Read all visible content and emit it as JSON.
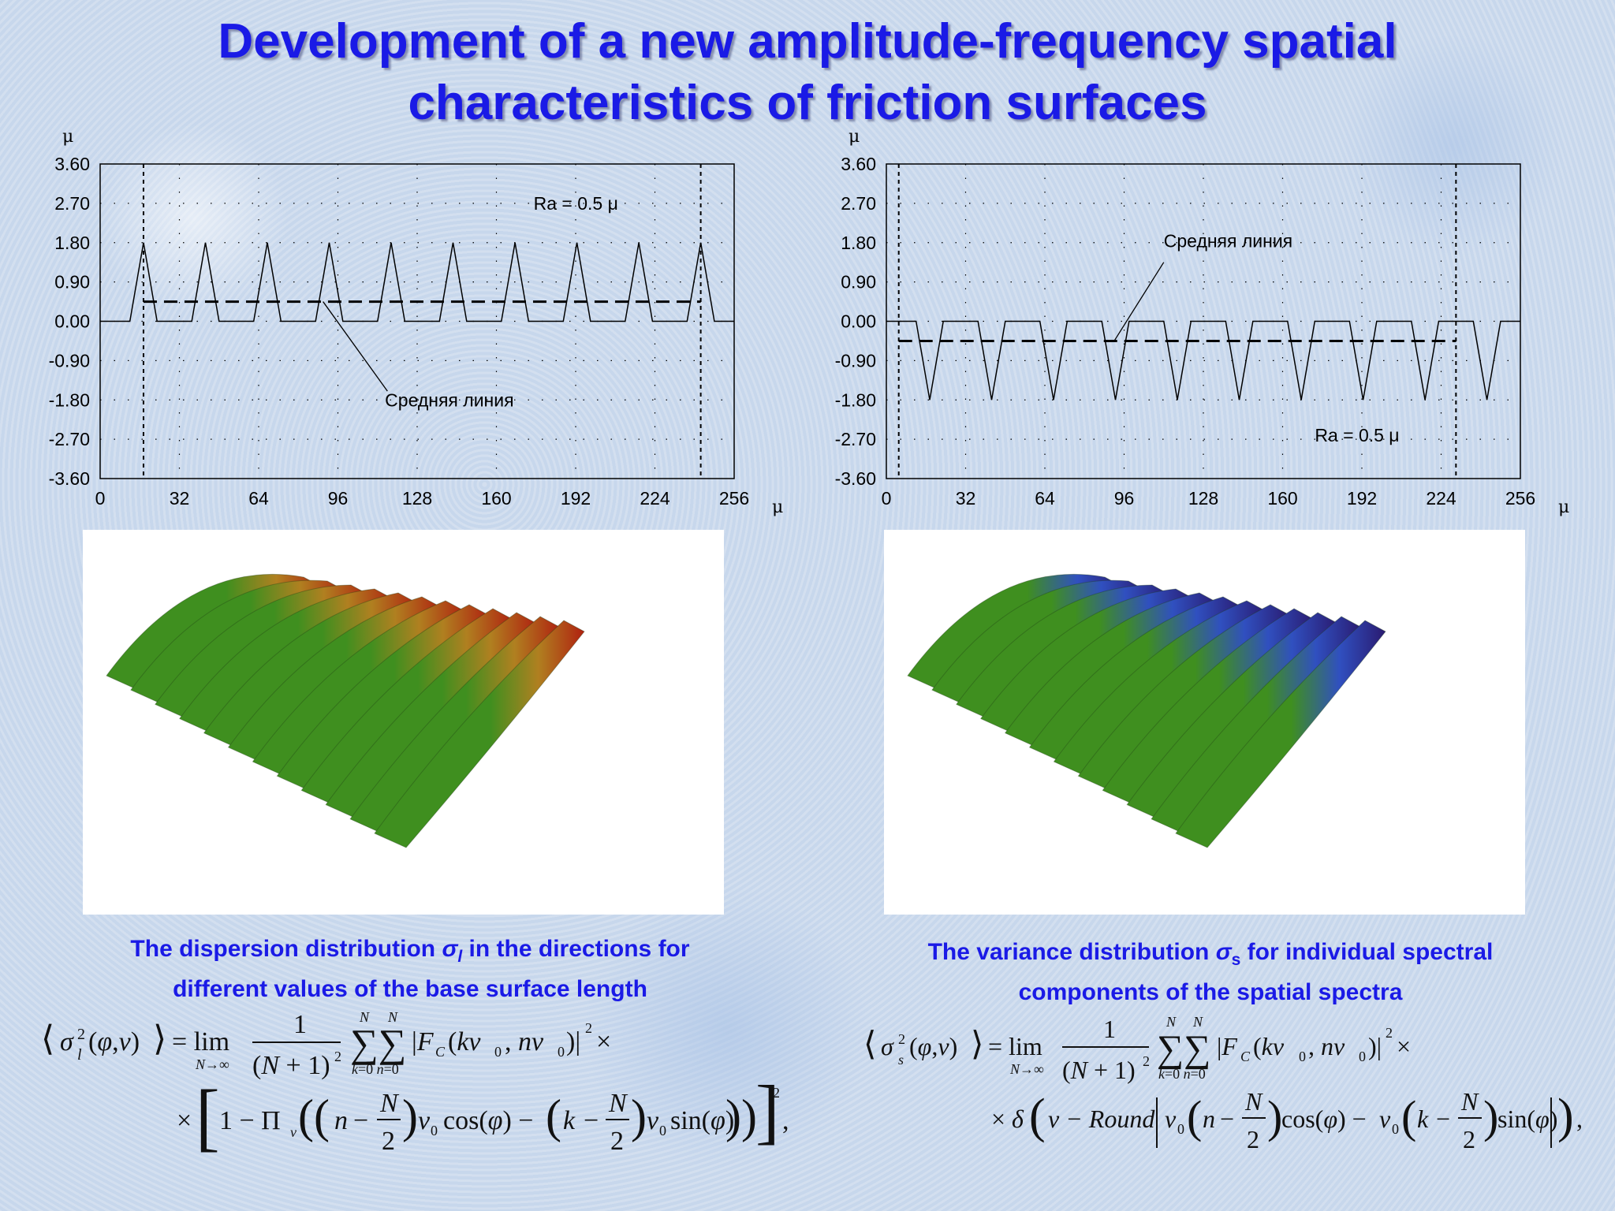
{
  "slide": {
    "title_line1": "Development of a new amplitude-frequency spatial",
    "title_line2": "characteristics of friction surfaces"
  },
  "chart_data": [
    {
      "type": "line",
      "unit_x": "μ",
      "unit_y": "μ",
      "x_ticks": [
        "0",
        "32",
        "64",
        "96",
        "128",
        "160",
        "192",
        "224",
        "256"
      ],
      "y_ticks": [
        "3.60",
        "2.70",
        "1.80",
        "0.90",
        "0.00",
        "-0.90",
        "-1.80",
        "-2.70",
        "-3.60"
      ],
      "xlim": [
        0,
        256
      ],
      "ylim": [
        -3.6,
        3.6
      ],
      "grid": "dotted",
      "profile": {
        "x": [
          0,
          12,
          17.5,
          23,
          37,
          42.5,
          48,
          62,
          67.5,
          73,
          87,
          92.5,
          98,
          112,
          117.5,
          123,
          137,
          142.5,
          148,
          162,
          167.5,
          173,
          187,
          192.5,
          198,
          212,
          217.5,
          223,
          237,
          242.5,
          248,
          256
        ],
        "y": [
          0,
          0,
          1.8,
          0,
          0,
          1.8,
          0,
          0,
          1.8,
          0,
          0,
          1.8,
          0,
          0,
          1.8,
          0,
          0,
          1.8,
          0,
          0,
          1.8,
          0,
          0,
          1.8,
          0,
          0,
          1.8,
          0,
          0,
          1.8,
          0,
          0
        ]
      },
      "mean_line_y": 0.45,
      "mean_line_range": [
        17.5,
        242.5
      ],
      "base_length_markers_x": [
        17.5,
        242.5
      ],
      "annotation_ra": "Ra = 0.5 μ",
      "annotation_mean": "Средняя линия"
    },
    {
      "type": "line",
      "unit_x": "μ",
      "unit_y": "μ",
      "x_ticks": [
        "0",
        "32",
        "64",
        "96",
        "128",
        "160",
        "192",
        "224",
        "256"
      ],
      "y_ticks": [
        "3.60",
        "2.70",
        "1.80",
        "0.90",
        "0.00",
        "-0.90",
        "-1.80",
        "-2.70",
        "-3.60"
      ],
      "xlim": [
        0,
        256
      ],
      "ylim": [
        -3.6,
        3.6
      ],
      "grid": "dotted",
      "profile": {
        "x": [
          0,
          5,
          12,
          17.5,
          23,
          30,
          37,
          42.5,
          48,
          55,
          62,
          67.5,
          73,
          80,
          87,
          92.5,
          98,
          105,
          112,
          117.5,
          123,
          130,
          137,
          142.5,
          148,
          155,
          162,
          167.5,
          173,
          180,
          187,
          192.5,
          198,
          205,
          212,
          217.5,
          223,
          230,
          237,
          242.5,
          248,
          256
        ],
        "y": [
          0,
          0,
          0,
          -1.8,
          0,
          0,
          0,
          -1.8,
          0,
          0,
          0,
          -1.8,
          0,
          0,
          0,
          -1.8,
          0,
          0,
          0,
          -1.8,
          0,
          0,
          0,
          -1.8,
          0,
          0,
          0,
          -1.8,
          0,
          0,
          0,
          -1.8,
          0,
          0,
          0,
          -1.8,
          0,
          0,
          0,
          -1.8,
          0,
          0
        ]
      },
      "mean_line_y": -0.45,
      "mean_line_range": [
        5,
        230
      ],
      "base_length_markers_x": [
        5,
        230
      ],
      "annotation_ra": "Ra = 0.5 μ",
      "annotation_mean": "Средняя линия"
    }
  ],
  "surfaces": {
    "left": {
      "colors": [
        "#3f8f1f",
        "#b08020",
        "#b02010"
      ]
    },
    "right": {
      "colors": [
        "#3f8f1f",
        "#3050c0",
        "#2a1a70"
      ]
    }
  },
  "captions": {
    "left_line1_pre": "The dispersion distribution ",
    "left_sigma": "σ",
    "left_sub": "l",
    "left_line1_post": "  in the directions for",
    "left_line2": "different values of the base surface length",
    "right_line1_pre": "The variance distribution ",
    "right_sigma": "σ",
    "right_sub": "s",
    "right_line1_post": " for individual spectral",
    "right_line2": "components of the spatial spectra"
  }
}
